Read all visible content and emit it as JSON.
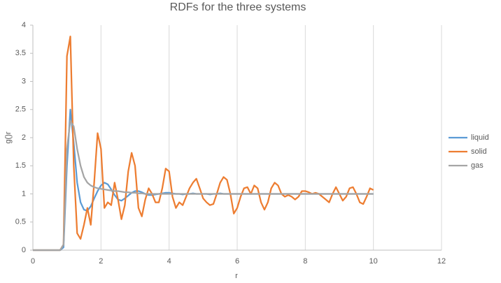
{
  "chart_data": {
    "type": "line",
    "title": "RDFs for the three systems",
    "x_label": "r",
    "y_label": "g()r",
    "x": [
      0,
      0.1,
      0.2,
      0.3,
      0.4,
      0.5,
      0.6,
      0.7,
      0.8,
      0.9,
      1,
      1.1,
      1.2,
      1.3,
      1.4,
      1.5,
      1.6,
      1.7,
      1.8,
      1.9,
      2,
      2.1,
      2.2,
      2.3,
      2.4,
      2.5,
      2.6,
      2.7,
      2.8,
      2.9,
      3,
      3.1,
      3.2,
      3.3,
      3.4,
      3.5,
      3.6,
      3.7,
      3.8,
      3.9,
      4,
      4.1,
      4.2,
      4.3,
      4.4,
      4.5,
      4.6,
      4.7,
      4.8,
      4.9,
      5,
      5.1,
      5.2,
      5.3,
      5.4,
      5.5,
      5.6,
      5.7,
      5.8,
      5.9,
      6,
      6.1,
      6.2,
      6.3,
      6.4,
      6.5,
      6.6,
      6.7,
      6.8,
      6.9,
      7,
      7.1,
      7.2,
      7.3,
      7.4,
      7.5,
      7.6,
      7.7,
      7.8,
      7.9,
      8,
      8.1,
      8.2,
      8.3,
      8.4,
      8.5,
      8.6,
      8.7,
      8.8,
      8.9,
      9,
      9.1,
      9.2,
      9.3,
      9.4,
      9.5,
      9.6,
      9.7,
      9.8,
      9.9,
      10
    ],
    "series": [
      {
        "name": "liquid",
        "color": "#5b9bd5",
        "values": [
          0,
          0,
          0,
          0,
          0,
          0,
          0,
          0,
          0,
          0.05,
          1.5,
          2.5,
          1.9,
          1.2,
          0.85,
          0.72,
          0.7,
          0.78,
          0.92,
          1.05,
          1.15,
          1.2,
          1.17,
          1.08,
          0.98,
          0.9,
          0.88,
          0.92,
          0.97,
          1.02,
          1.05,
          1.05,
          1.03,
          1.0,
          0.98,
          0.98,
          0.99,
          1.0,
          1.01,
          1.02,
          1.02,
          1.01,
          1.0,
          1.0,
          0.99,
          1.0,
          1.0,
          1.01,
          1.0,
          1.0,
          1.0,
          1.0,
          0.99,
          1.0,
          1.0,
          1.01,
          1.0,
          1.0,
          1.0,
          1.0,
          1.0,
          1.0,
          1.0,
          1.0,
          1.0,
          1.0,
          1.0,
          1.0,
          1.0,
          1.0,
          1.0,
          1.0,
          1.0,
          1.0,
          1.0,
          1.0,
          1.0,
          1.0,
          1.0,
          1.0,
          1.0,
          1.0,
          1.0,
          1.0,
          1.0,
          1.0,
          1.0,
          1.0,
          1.0,
          1.0,
          1.0,
          1.0,
          1.0,
          1.0,
          1.0,
          1.0,
          1.0,
          1.0,
          1.0,
          1.0,
          1.0
        ]
      },
      {
        "name": "solid",
        "color": "#ed7d31",
        "values": [
          0,
          0,
          0,
          0,
          0,
          0,
          0,
          0,
          0,
          0.1,
          3.45,
          3.8,
          1.5,
          0.3,
          0.2,
          0.45,
          0.75,
          0.45,
          1.2,
          2.08,
          1.8,
          0.75,
          0.85,
          0.8,
          1.2,
          0.9,
          0.55,
          0.8,
          1.4,
          1.73,
          1.5,
          0.75,
          0.6,
          0.9,
          1.1,
          1.0,
          0.85,
          0.85,
          1.1,
          1.45,
          1.4,
          0.95,
          0.75,
          0.85,
          0.8,
          0.95,
          1.1,
          1.2,
          1.27,
          1.1,
          0.92,
          0.85,
          0.8,
          0.82,
          1.0,
          1.2,
          1.3,
          1.25,
          1.0,
          0.65,
          0.75,
          0.95,
          1.1,
          1.12,
          1.0,
          1.15,
          1.1,
          0.85,
          0.72,
          0.85,
          1.1,
          1.2,
          1.15,
          1.0,
          0.95,
          0.98,
          0.95,
          0.9,
          0.95,
          1.05,
          1.05,
          1.03,
          1.0,
          1.02,
          1.0,
          0.95,
          0.9,
          0.85,
          1.0,
          1.12,
          1.0,
          0.88,
          0.95,
          1.1,
          1.12,
          1.0,
          0.85,
          0.82,
          0.95,
          1.1,
          1.07
        ]
      },
      {
        "name": "gas",
        "color": "#a5a5a5",
        "values": [
          0,
          0,
          0,
          0,
          0,
          0,
          0,
          0,
          0,
          0.1,
          1.8,
          2.3,
          2.2,
          1.8,
          1.5,
          1.3,
          1.2,
          1.15,
          1.12,
          1.1,
          1.09,
          1.08,
          1.07,
          1.06,
          1.05,
          1.05,
          1.04,
          1.03,
          1.03,
          1.02,
          1.02,
          1.01,
          1.01,
          1.0,
          1.0,
          1.0,
          1.0,
          1.0,
          1.0,
          1.0,
          1.0,
          1.0,
          1.0,
          1.0,
          1.0,
          1.0,
          1.0,
          1.0,
          1.0,
          1.0,
          1.0,
          1.0,
          1.0,
          1.0,
          1.0,
          1.0,
          1.0,
          1.0,
          1.0,
          1.0,
          1.0,
          1.0,
          1.0,
          1.0,
          1.0,
          1.0,
          1.0,
          1.0,
          1.0,
          1.0,
          1.0,
          1.0,
          1.0,
          1.0,
          1.0,
          1.0,
          1.0,
          1.0,
          1.0,
          1.0,
          1.0,
          1.0,
          1.0,
          1.0,
          1.0,
          1.0,
          1.0,
          1.0,
          1.0,
          1.0,
          1.0,
          1.0,
          1.0,
          1.0,
          1.0,
          1.0,
          1.0,
          1.0,
          1.0,
          1.0,
          1.0
        ]
      }
    ],
    "xlim": [
      0,
      12
    ],
    "xticks": [
      0,
      2,
      4,
      6,
      8,
      10,
      12
    ],
    "ylim": [
      0,
      4
    ],
    "yticks": [
      0,
      0.5,
      1,
      1.5,
      2,
      2.5,
      3,
      3.5,
      4
    ],
    "grid": true,
    "legend": "right"
  }
}
